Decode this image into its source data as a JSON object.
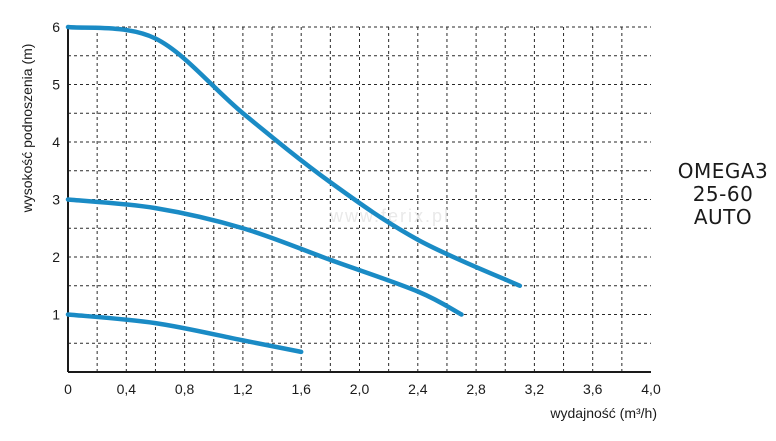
{
  "chart_data": {
    "type": "line",
    "title": [
      "OMEGA3",
      "25-60",
      "AUTO"
    ],
    "xlabel": "wydajność (m³/h)",
    "ylabel": "wysokość podnoszenia (m)",
    "watermark": "www.ferix.pl",
    "xlim": [
      0,
      4.0
    ],
    "ylim": [
      0,
      6
    ],
    "xticks": [
      "0",
      "0,4",
      "0,8",
      "1,2",
      "1,6",
      "2,0",
      "2,4",
      "2,8",
      "3,2",
      "3,6",
      "4,0"
    ],
    "yticks": [
      "1",
      "2",
      "3",
      "4",
      "5",
      "6"
    ],
    "grid": "dashed, every 0.2 m³/h and 0.5 m",
    "series_color": "#1a8bc5",
    "series": [
      {
        "x": [
          0,
          0.6,
          1.2,
          1.8,
          2.4,
          3.1
        ],
        "y": [
          6.0,
          5.8,
          4.5,
          3.3,
          2.3,
          1.5
        ]
      },
      {
        "x": [
          0,
          0.6,
          1.2,
          1.8,
          2.4,
          2.7
        ],
        "y": [
          3.0,
          2.85,
          2.5,
          1.95,
          1.4,
          1.0
        ]
      },
      {
        "x": [
          0,
          0.6,
          1.2,
          1.6
        ],
        "y": [
          1.0,
          0.85,
          0.55,
          0.35
        ]
      }
    ]
  }
}
